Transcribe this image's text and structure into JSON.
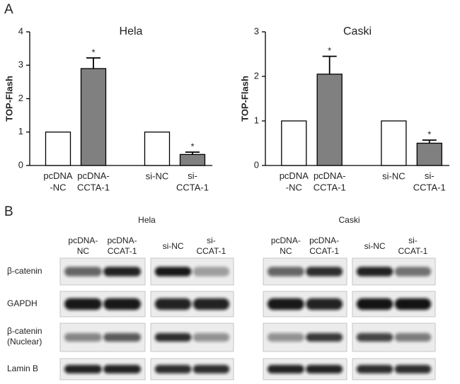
{
  "figure": {
    "panel_a_label": "A",
    "panel_b_label": "B"
  },
  "chart_data": [
    {
      "type": "bar",
      "title": "Hela",
      "y_label": "TOP-Flash",
      "categories": [
        "pcDNA\n-NC",
        "pcDNA-\nCCTA-1",
        "si-NC",
        "si-\nCCTA-1"
      ],
      "values": [
        1,
        2.9,
        1,
        0.33
      ],
      "errors": [
        null,
        0.32,
        null,
        0.07
      ],
      "colors": [
        "#ffffff",
        "#808080",
        "#ffffff",
        "#808080"
      ],
      "annotations": [
        {
          "category": "pcDNA-\nCCTA-1",
          "text": "*"
        },
        {
          "category": "si-\nCCTA-1",
          "text": "*"
        }
      ],
      "ylim": [
        0,
        4
      ],
      "yticks": [
        0,
        1,
        2,
        3,
        4
      ]
    },
    {
      "type": "bar",
      "title": "Caski",
      "y_label": "TOP-Flash",
      "categories": [
        "pcDNA\n-NC",
        "pcDNA-\nCCTA-1",
        "si-NC",
        "si-\nCCTA-1"
      ],
      "values": [
        1,
        2.05,
        1,
        0.5
      ],
      "errors": [
        null,
        0.4,
        null,
        0.07
      ],
      "colors": [
        "#ffffff",
        "#808080",
        "#ffffff",
        "#808080"
      ],
      "annotations": [
        {
          "category": "pcDNA-\nCCTA-1",
          "text": "*"
        },
        {
          "category": "si-\nCCTA-1",
          "text": "*"
        }
      ],
      "ylim": [
        0,
        3
      ],
      "yticks": [
        0,
        1,
        2,
        3
      ]
    }
  ],
  "blots": {
    "groups": [
      {
        "title": "Hela",
        "lanes": [
          "pcDNA-\nNC",
          "pcDNA-\nCCAT-1",
          "si-NC",
          "si-\nCCAT-1"
        ]
      },
      {
        "title": "Caski",
        "lanes": [
          "pcDNA-\nNC",
          "pcDNA-\nCCAT-1",
          "si-NC",
          "si-\nCCAT-1"
        ]
      }
    ],
    "rows": [
      "β-catenin",
      "GAPDH",
      "β-catenin\n(Nuclear)",
      "Lamin B"
    ]
  }
}
